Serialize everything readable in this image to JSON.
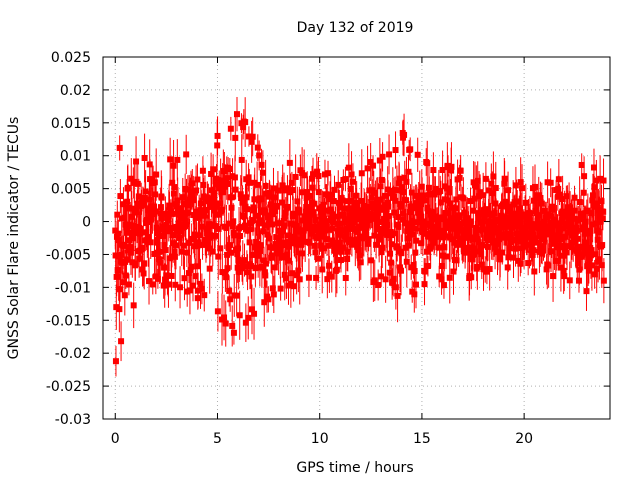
{
  "chart_data": {
    "type": "scatter",
    "title": "Day 132 of 2019",
    "xlabel": "GPS time / hours",
    "ylabel": "GNSS Solar Flare indicator / TECUs",
    "xlim": [
      -0.6,
      24.2
    ],
    "ylim": [
      -0.03,
      0.025
    ],
    "grid": true,
    "series_color": "#ff0000",
    "x_ticks": [
      {
        "value": 0,
        "label": "0"
      },
      {
        "value": 5,
        "label": "5"
      },
      {
        "value": 10,
        "label": "10"
      },
      {
        "value": 15,
        "label": "15"
      },
      {
        "value": 20,
        "label": "20"
      }
    ],
    "y_ticks": [
      {
        "value": 0.025,
        "label": "0.025"
      },
      {
        "value": 0.02,
        "label": "0.02"
      },
      {
        "value": 0.015,
        "label": "0.015"
      },
      {
        "value": 0.01,
        "label": "0.01"
      },
      {
        "value": 0.005,
        "label": "0.005"
      },
      {
        "value": 0,
        "label": "0"
      },
      {
        "value": -0.005,
        "label": "-0.005"
      },
      {
        "value": -0.01,
        "label": "-0.01"
      },
      {
        "value": -0.015,
        "label": "-0.015"
      },
      {
        "value": -0.02,
        "label": "-0.02"
      },
      {
        "value": -0.025,
        "label": "-0.025"
      },
      {
        "value": -0.03,
        "label": "-0.03"
      }
    ],
    "series": [
      {
        "name": "solar flare indicator",
        "x_start": 0,
        "x_end": 23.9,
        "n_points": 1434,
        "envelope_note": "approximate upper/lower extent of markers by hour",
        "envelope": [
          {
            "x": 0,
            "hi": 0.013,
            "lo": -0.022
          },
          {
            "x": 1,
            "hi": 0.012,
            "lo": -0.012
          },
          {
            "x": 2,
            "hi": 0.01,
            "lo": -0.01
          },
          {
            "x": 3,
            "hi": 0.01,
            "lo": -0.01
          },
          {
            "x": 4,
            "hi": 0.011,
            "lo": -0.012
          },
          {
            "x": 5,
            "hi": 0.013,
            "lo": -0.014
          },
          {
            "x": 6,
            "hi": 0.017,
            "lo": -0.019
          },
          {
            "x": 7,
            "hi": 0.012,
            "lo": -0.013
          },
          {
            "x": 8,
            "hi": 0.01,
            "lo": -0.011
          },
          {
            "x": 9,
            "hi": 0.009,
            "lo": -0.01
          },
          {
            "x": 10,
            "hi": 0.008,
            "lo": -0.009
          },
          {
            "x": 11,
            "hi": 0.008,
            "lo": -0.009
          },
          {
            "x": 12,
            "hi": 0.009,
            "lo": -0.009
          },
          {
            "x": 13,
            "hi": 0.01,
            "lo": -0.01
          },
          {
            "x": 14,
            "hi": 0.014,
            "lo": -0.012
          },
          {
            "x": 15,
            "hi": 0.01,
            "lo": -0.011
          },
          {
            "x": 16,
            "hi": 0.009,
            "lo": -0.01
          },
          {
            "x": 17,
            "hi": 0.008,
            "lo": -0.009
          },
          {
            "x": 18,
            "hi": 0.007,
            "lo": -0.008
          },
          {
            "x": 19,
            "hi": 0.007,
            "lo": -0.007
          },
          {
            "x": 20,
            "hi": 0.006,
            "lo": -0.008
          },
          {
            "x": 21,
            "hi": 0.006,
            "lo": -0.008
          },
          {
            "x": 22,
            "hi": 0.007,
            "lo": -0.009
          },
          {
            "x": 23,
            "hi": 0.009,
            "lo": -0.011
          },
          {
            "x": 23.9,
            "hi": 0.008,
            "lo": -0.01
          }
        ]
      }
    ]
  }
}
